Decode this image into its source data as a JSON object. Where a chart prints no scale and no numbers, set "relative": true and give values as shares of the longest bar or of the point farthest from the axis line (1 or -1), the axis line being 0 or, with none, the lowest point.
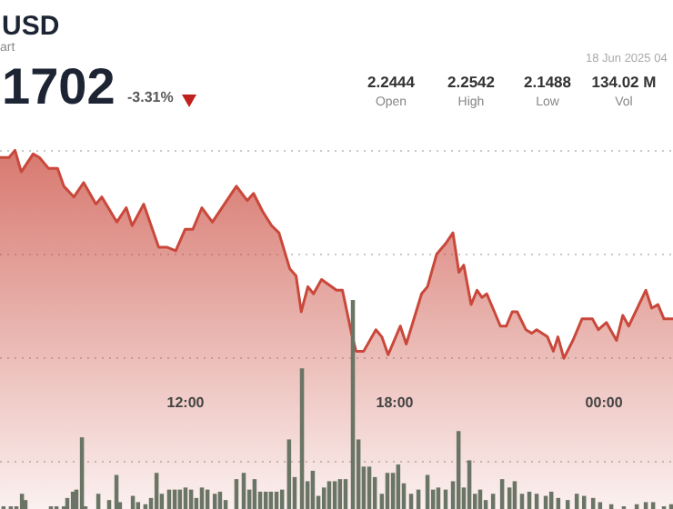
{
  "chart_data": [
    {
      "type": "area",
      "title": "USD",
      "subtitle": "art",
      "relative": true,
      "grid": "y",
      "xlim": [
        6.68,
        25.98
      ],
      "xticks": [
        {
          "value": 12,
          "label": "12:00"
        },
        {
          "value": 18,
          "label": "18:00"
        },
        {
          "value": 24,
          "label": "00:00"
        }
      ],
      "annotations": [
        "1702",
        "-3.31%",
        "2.2444",
        "Open",
        "2.2542",
        "High",
        "2.1488",
        "Low",
        "134.02 M",
        "Vol",
        "18 Jun 2025 04"
      ],
      "series": [
        {
          "color": "#c9483b",
          "x": [
            6.68,
            6.94,
            7.11,
            7.29,
            7.63,
            7.81,
            8.07,
            8.33,
            8.51,
            8.8,
            9.08,
            9.43,
            9.6,
            10.03,
            10.3,
            10.47,
            10.8,
            11.23,
            11.46,
            11.72,
            11.99,
            12.21,
            12.47,
            12.77,
            13.46,
            13.77,
            13.95,
            14.21,
            14.47,
            14.68,
            14.99,
            15.17,
            15.32,
            15.51,
            15.67,
            15.9,
            16.33,
            16.5,
            16.76,
            16.89,
            17.11,
            17.46,
            17.63,
            17.81,
            18.16,
            18.33,
            18.77,
            18.94,
            19.2,
            19.46,
            19.67,
            19.84,
            19.98,
            20.19,
            20.36,
            20.5,
            20.64,
            21.03,
            21.2,
            21.37,
            21.51,
            21.76,
            21.93,
            22.07,
            22.38,
            22.55,
            22.68,
            22.85,
            23.11,
            23.37,
            23.67,
            23.84,
            24.07,
            24.36,
            24.54,
            24.71,
            25.2,
            25.37,
            25.55,
            25.72,
            25.98
          ],
          "values": [
            0.98,
            0.98,
            1.0,
            0.94,
            0.99,
            0.98,
            0.95,
            0.95,
            0.9,
            0.87,
            0.91,
            0.85,
            0.87,
            0.8,
            0.84,
            0.79,
            0.85,
            0.73,
            0.73,
            0.72,
            0.78,
            0.78,
            0.84,
            0.8,
            0.9,
            0.86,
            0.88,
            0.83,
            0.79,
            0.77,
            0.67,
            0.65,
            0.55,
            0.62,
            0.6,
            0.64,
            0.61,
            0.61,
            0.49,
            0.44,
            0.44,
            0.5,
            0.48,
            0.43,
            0.51,
            0.46,
            0.6,
            0.62,
            0.71,
            0.74,
            0.77,
            0.66,
            0.68,
            0.57,
            0.61,
            0.59,
            0.6,
            0.51,
            0.51,
            0.55,
            0.55,
            0.5,
            0.49,
            0.5,
            0.48,
            0.44,
            0.48,
            0.42,
            0.47,
            0.53,
            0.53,
            0.5,
            0.52,
            0.47,
            0.54,
            0.51,
            0.61,
            0.56,
            0.57,
            0.53,
            0.53
          ]
        }
      ]
    },
    {
      "type": "bar",
      "relative": true,
      "xlim": [
        6.68,
        25.98
      ],
      "series": [
        {
          "color": "#6b7566",
          "x": [
            6.78,
            6.99,
            7.15,
            7.31,
            7.41,
            8.14,
            8.3,
            8.51,
            8.61,
            8.77,
            8.87,
            9.03,
            9.13,
            9.5,
            9.81,
            10.02,
            10.12,
            10.49,
            10.64,
            10.85,
            11.01,
            11.17,
            11.32,
            11.53,
            11.69,
            11.84,
            12.0,
            12.16,
            12.31,
            12.47,
            12.63,
            12.84,
            12.99,
            13.15,
            13.46,
            13.67,
            13.83,
            13.98,
            14.14,
            14.3,
            14.45,
            14.61,
            14.77,
            14.97,
            15.13,
            15.34,
            15.5,
            15.65,
            15.81,
            15.97,
            16.12,
            16.28,
            16.43,
            16.59,
            16.8,
            16.96,
            17.11,
            17.27,
            17.43,
            17.63,
            17.79,
            17.95,
            18.1,
            18.26,
            18.47,
            18.68,
            18.94,
            19.1,
            19.25,
            19.46,
            19.67,
            19.83,
            19.98,
            20.14,
            20.3,
            20.45,
            20.61,
            20.82,
            21.08,
            21.29,
            21.44,
            21.65,
            21.86,
            22.07,
            22.33,
            22.49,
            22.69,
            22.96,
            23.22,
            23.43,
            23.69,
            23.89,
            24.21,
            24.57,
            24.94,
            25.2,
            25.41,
            25.72,
            25.93
          ],
          "values": [
            0.01,
            0.01,
            0.01,
            0.07,
            0.04,
            0.01,
            0.01,
            0.01,
            0.05,
            0.08,
            0.09,
            0.34,
            0.01,
            0.07,
            0.04,
            0.16,
            0.03,
            0.06,
            0.03,
            0.02,
            0.05,
            0.17,
            0.07,
            0.09,
            0.09,
            0.09,
            0.1,
            0.09,
            0.05,
            0.1,
            0.09,
            0.07,
            0.08,
            0.04,
            0.14,
            0.17,
            0.09,
            0.14,
            0.08,
            0.08,
            0.08,
            0.08,
            0.09,
            0.33,
            0.15,
            0.67,
            0.13,
            0.18,
            0.06,
            0.1,
            0.13,
            0.13,
            0.14,
            0.14,
            1.0,
            0.33,
            0.2,
            0.2,
            0.15,
            0.07,
            0.17,
            0.17,
            0.21,
            0.12,
            0.07,
            0.09,
            0.16,
            0.09,
            0.1,
            0.09,
            0.13,
            0.37,
            0.1,
            0.23,
            0.07,
            0.09,
            0.04,
            0.07,
            0.14,
            0.1,
            0.13,
            0.07,
            0.08,
            0.07,
            0.06,
            0.08,
            0.05,
            0.04,
            0.07,
            0.06,
            0.05,
            0.03,
            0.02,
            0.01,
            0.02,
            0.03,
            0.03,
            0.01,
            0.02
          ]
        }
      ]
    }
  ]
}
